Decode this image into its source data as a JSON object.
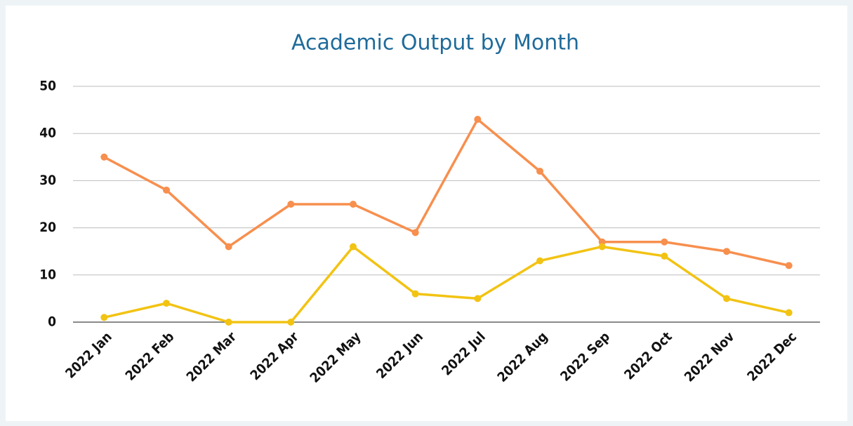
{
  "chart_data": {
    "type": "line",
    "title": "Academic Output by Month",
    "categories": [
      "2022 Jan",
      "2022 Feb",
      "2022 Mar",
      "2022 Apr",
      "2022 May",
      "2022 Jun",
      "2022 Jul",
      "2022 Aug",
      "2022 Sep",
      "2022 Oct",
      "2022 Nov",
      "2022 Dec"
    ],
    "series": [
      {
        "color": "#f78f4e",
        "values": [
          35,
          28,
          16,
          25,
          25,
          19,
          43,
          32,
          17,
          17,
          15,
          12
        ]
      },
      {
        "color": "#f2c313",
        "values": [
          1,
          4,
          0,
          0,
          16,
          6,
          5,
          13,
          16,
          14,
          5,
          2
        ]
      }
    ],
    "ylim": [
      0,
      50
    ],
    "yticks": [
      0,
      10,
      20,
      30,
      40,
      50
    ],
    "grid": true
  }
}
